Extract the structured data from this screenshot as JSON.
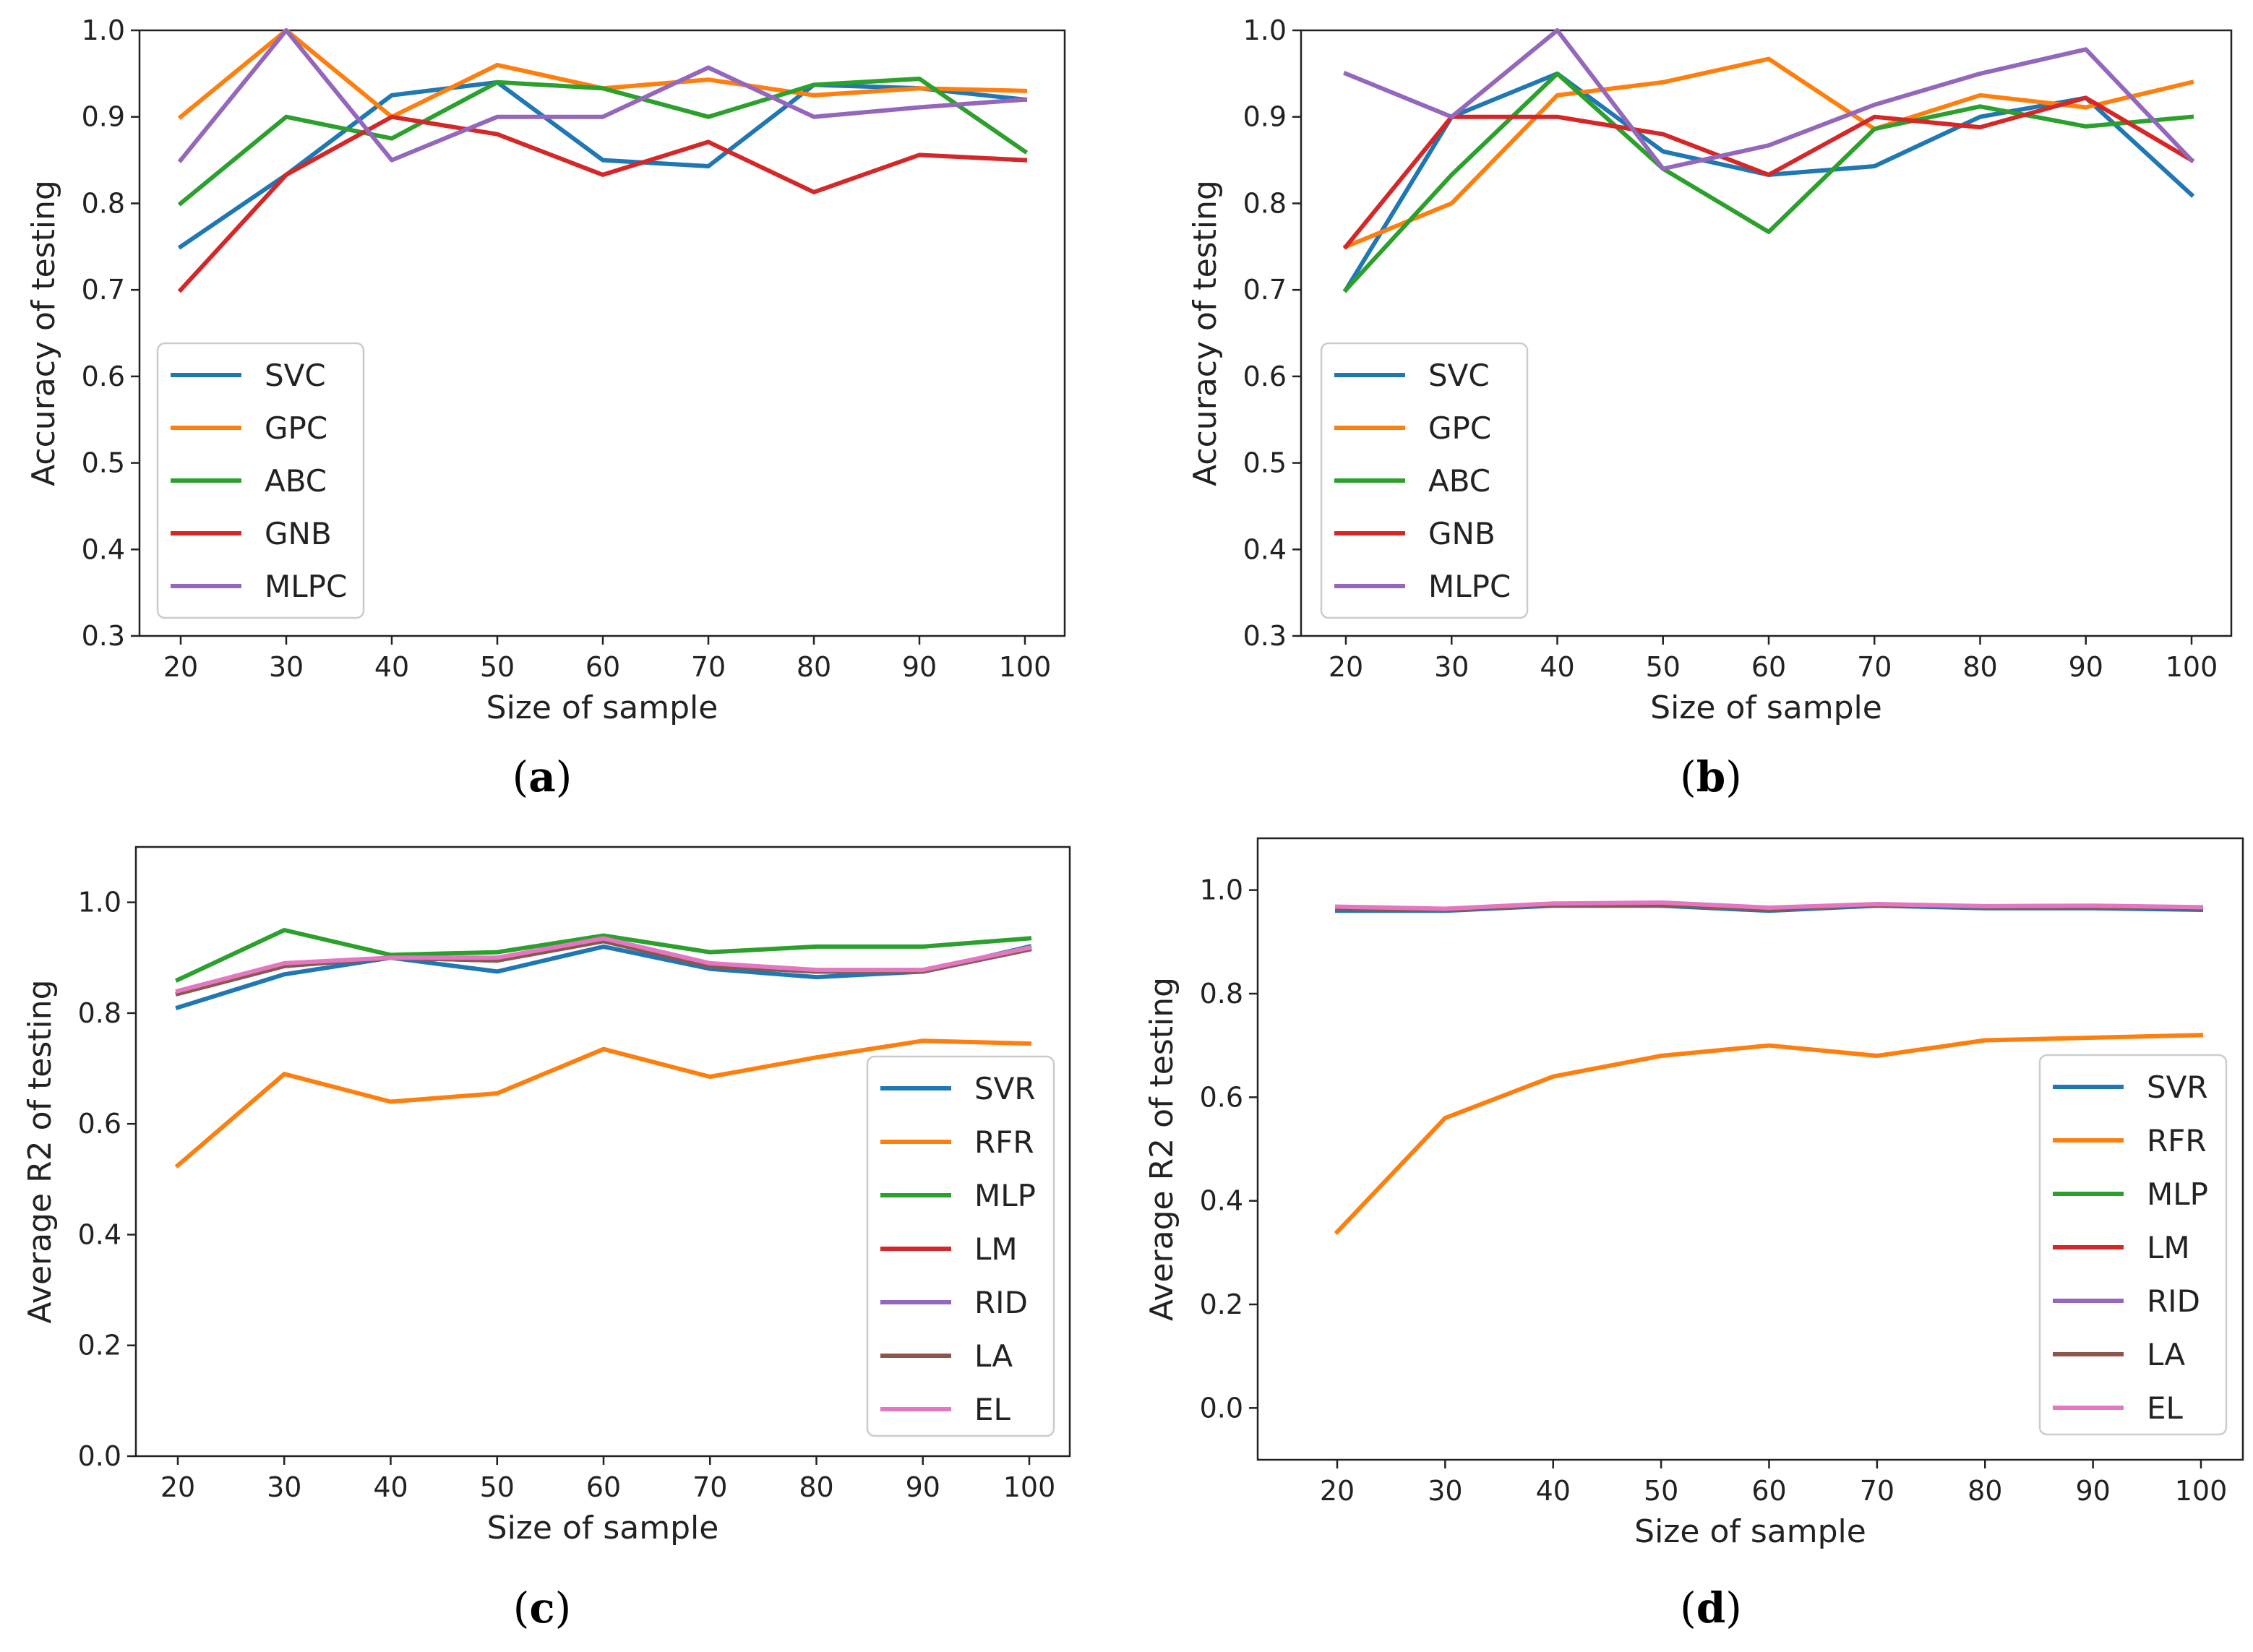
{
  "colors": {
    "SVC": "#1f77b4",
    "GPC": "#ff7f0e",
    "ABC": "#2ca02c",
    "GNB": "#d62728",
    "MLPC": "#9467bd",
    "SVR": "#1f77b4",
    "RFR": "#ff7f0e",
    "MLP": "#2ca02c",
    "LM": "#d62728",
    "RID": "#9467bd",
    "LA": "#8c564b",
    "EL": "#e377c2"
  },
  "chart_data": [
    {
      "id": "a",
      "type": "line",
      "caption_open": "(",
      "caption_letter": "a",
      "caption_close": ")",
      "xlabel": "Size of sample",
      "ylabel": "Accuracy of testing",
      "x": [
        20,
        30,
        40,
        50,
        60,
        70,
        80,
        90,
        100
      ],
      "xticks": [
        "20",
        "30",
        "40",
        "50",
        "60",
        "70",
        "80",
        "90",
        "100"
      ],
      "ylim": [
        0.3,
        1.0
      ],
      "yticks": [
        "0.3",
        "0.4",
        "0.5",
        "0.6",
        "0.7",
        "0.8",
        "0.9",
        "1.0"
      ],
      "legend_position": "center-left",
      "series": [
        {
          "name": "SVC",
          "values": [
            0.75,
            0.833,
            0.925,
            0.94,
            0.85,
            0.843,
            0.937,
            0.933,
            0.92
          ]
        },
        {
          "name": "GPC",
          "values": [
            0.9,
            1.0,
            0.9,
            0.96,
            0.933,
            0.943,
            0.925,
            0.933,
            0.93
          ]
        },
        {
          "name": "ABC",
          "values": [
            0.8,
            0.9,
            0.875,
            0.94,
            0.933,
            0.9,
            0.937,
            0.944,
            0.86
          ]
        },
        {
          "name": "GNB",
          "values": [
            0.7,
            0.833,
            0.9,
            0.88,
            0.833,
            0.871,
            0.813,
            0.856,
            0.85
          ]
        },
        {
          "name": "MLPC",
          "values": [
            0.85,
            1.0,
            0.85,
            0.9,
            0.9,
            0.957,
            0.9,
            0.911,
            0.92
          ]
        }
      ]
    },
    {
      "id": "b",
      "type": "line",
      "caption_open": "(",
      "caption_letter": "b",
      "caption_close": ")",
      "xlabel": "Size of sample",
      "ylabel": "Accuracy of testing",
      "x": [
        20,
        30,
        40,
        50,
        60,
        70,
        80,
        90,
        100
      ],
      "xticks": [
        "20",
        "30",
        "40",
        "50",
        "60",
        "70",
        "80",
        "90",
        "100"
      ],
      "ylim": [
        0.3,
        1.0
      ],
      "yticks": [
        "0.3",
        "0.4",
        "0.5",
        "0.6",
        "0.7",
        "0.8",
        "0.9",
        "1.0"
      ],
      "legend_position": "center-left",
      "series": [
        {
          "name": "SVC",
          "values": [
            0.7,
            0.9,
            0.95,
            0.86,
            0.833,
            0.843,
            0.9,
            0.922,
            0.81
          ]
        },
        {
          "name": "GPC",
          "values": [
            0.75,
            0.8,
            0.925,
            0.94,
            0.967,
            0.886,
            0.925,
            0.911,
            0.94
          ]
        },
        {
          "name": "ABC",
          "values": [
            0.7,
            0.833,
            0.95,
            0.84,
            0.767,
            0.886,
            0.912,
            0.889,
            0.9
          ]
        },
        {
          "name": "GNB",
          "values": [
            0.75,
            0.9,
            0.9,
            0.88,
            0.833,
            0.9,
            0.888,
            0.922,
            0.85
          ]
        },
        {
          "name": "MLPC",
          "values": [
            0.95,
            0.9,
            1.0,
            0.84,
            0.867,
            0.914,
            0.95,
            0.978,
            0.85
          ]
        }
      ]
    },
    {
      "id": "c",
      "type": "line",
      "caption_open": "(",
      "caption_letter": "c",
      "caption_close": ")",
      "xlabel": "Size of sample",
      "ylabel": "Average R2 of testing",
      "x": [
        20,
        30,
        40,
        50,
        60,
        70,
        80,
        90,
        100
      ],
      "xticks": [
        "20",
        "30",
        "40",
        "50",
        "60",
        "70",
        "80",
        "90",
        "100"
      ],
      "ylim": [
        0.0,
        1.1
      ],
      "yticks": [
        "0.0",
        "0.2",
        "0.4",
        "0.6",
        "0.8",
        "1.0"
      ],
      "ytick_values": [
        0.0,
        0.2,
        0.4,
        0.6,
        0.8,
        1.0
      ],
      "legend_position": "lower-right",
      "series": [
        {
          "name": "SVR",
          "values": [
            0.81,
            0.87,
            0.9,
            0.875,
            0.92,
            0.88,
            0.865,
            0.875,
            0.92
          ]
        },
        {
          "name": "RFR",
          "values": [
            0.525,
            0.69,
            0.64,
            0.655,
            0.735,
            0.685,
            0.72,
            0.75,
            0.745
          ]
        },
        {
          "name": "MLP",
          "values": [
            0.86,
            0.95,
            0.905,
            0.91,
            0.94,
            0.91,
            0.92,
            0.92,
            0.935
          ]
        },
        {
          "name": "LM",
          "values": [
            0.835,
            0.885,
            0.9,
            0.895,
            0.93,
            0.885,
            0.875,
            0.875,
            0.915
          ]
        },
        {
          "name": "RID",
          "values": [
            0.835,
            0.885,
            0.9,
            0.895,
            0.93,
            0.885,
            0.875,
            0.875,
            0.915
          ]
        },
        {
          "name": "LA",
          "values": [
            0.835,
            0.885,
            0.9,
            0.895,
            0.93,
            0.885,
            0.875,
            0.875,
            0.915
          ]
        },
        {
          "name": "EL",
          "values": [
            0.84,
            0.89,
            0.9,
            0.9,
            0.935,
            0.89,
            0.878,
            0.878,
            0.918
          ]
        }
      ]
    },
    {
      "id": "d",
      "type": "line",
      "caption_open": "(",
      "caption_letter": "d",
      "caption_close": ")",
      "xlabel": "Size of sample",
      "ylabel": "Average R2 of testing",
      "x": [
        20,
        30,
        40,
        50,
        60,
        70,
        80,
        90,
        100
      ],
      "xticks": [
        "20",
        "30",
        "40",
        "50",
        "60",
        "70",
        "80",
        "90",
        "100"
      ],
      "ylim": [
        -0.1,
        1.1
      ],
      "yticks": [
        "0.0",
        "0.2",
        "0.4",
        "0.6",
        "0.8",
        "1.0"
      ],
      "ytick_values": [
        0.0,
        0.2,
        0.4,
        0.6,
        0.8,
        1.0
      ],
      "legend_position": "lower-right",
      "series": [
        {
          "name": "SVR",
          "values": [
            0.96,
            0.96,
            0.97,
            0.97,
            0.96,
            0.97,
            0.965,
            0.965,
            0.962
          ]
        },
        {
          "name": "RFR",
          "values": [
            0.34,
            0.56,
            0.64,
            0.68,
            0.7,
            0.68,
            0.71,
            0.715,
            0.72
          ]
        },
        {
          "name": "MLP",
          "values": [
            0.965,
            0.962,
            0.972,
            0.972,
            0.963,
            0.972,
            0.968,
            0.968,
            0.965
          ]
        },
        {
          "name": "LM",
          "values": [
            0.965,
            0.962,
            0.972,
            0.972,
            0.963,
            0.972,
            0.968,
            0.968,
            0.965
          ]
        },
        {
          "name": "RID",
          "values": [
            0.965,
            0.962,
            0.972,
            0.972,
            0.963,
            0.972,
            0.968,
            0.968,
            0.965
          ]
        },
        {
          "name": "LA",
          "values": [
            0.965,
            0.962,
            0.972,
            0.972,
            0.963,
            0.972,
            0.968,
            0.968,
            0.965
          ]
        },
        {
          "name": "EL",
          "values": [
            0.968,
            0.964,
            0.974,
            0.976,
            0.966,
            0.973,
            0.969,
            0.97,
            0.967
          ]
        }
      ]
    }
  ]
}
